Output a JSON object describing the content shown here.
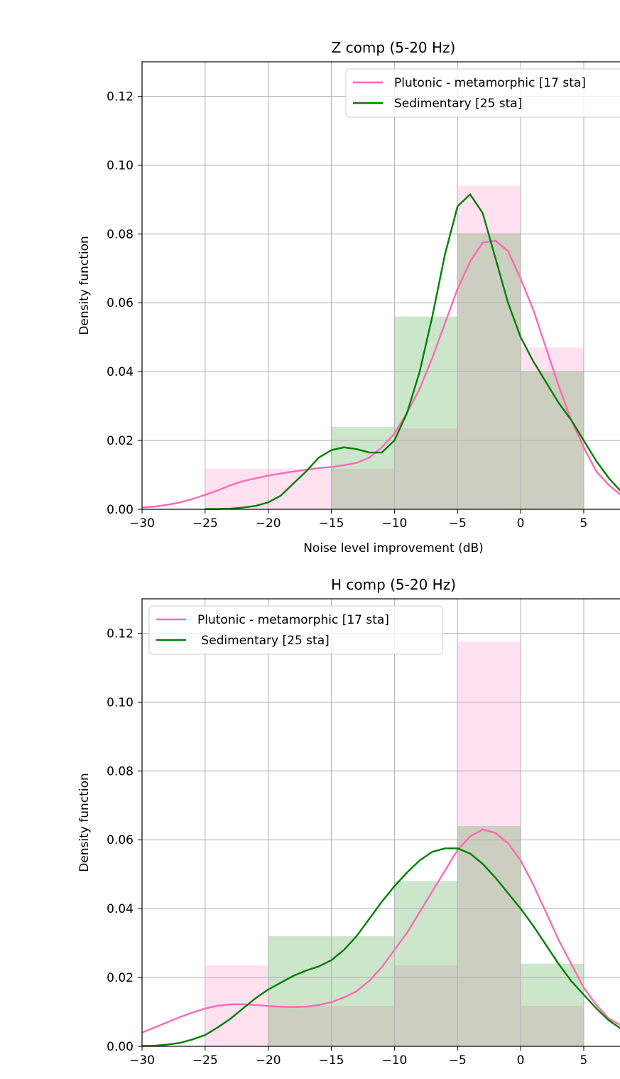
{
  "chart_data": [
    {
      "type": "histogram",
      "title": "Z comp (5-20 Hz)",
      "xlabel": "Noise level improvement (dB)",
      "ylabel": "Density function",
      "xlim": [
        -30,
        10
      ],
      "ylim": [
        0,
        0.13
      ],
      "grid": true,
      "legend": "upper right",
      "xticks": [
        {
          "value": -30,
          "label": "−30"
        },
        {
          "value": -25,
          "label": "−25"
        },
        {
          "value": -20,
          "label": "−20"
        },
        {
          "value": -15,
          "label": "−15"
        },
        {
          "value": -10,
          "label": "−10"
        },
        {
          "value": -5,
          "label": "−5"
        },
        0,
        5
      ],
      "yticks": [
        {
          "value": 0,
          "label": "0.00"
        },
        0.02,
        0.04,
        0.06,
        0.08,
        {
          "value": 0.1,
          "label": "0.10"
        },
        0.12
      ],
      "bins": [
        -25,
        -20,
        -15,
        -10,
        -5,
        0,
        5
      ],
      "histograms": [
        {
          "color": "#ff69b4",
          "values": [
            0.0118,
            0.0118,
            0.0118,
            0.0235,
            0.094,
            0.047
          ]
        },
        {
          "color": "#008000",
          "values": [
            0,
            0,
            0.024,
            0.056,
            0.08,
            0.04
          ]
        }
      ],
      "series": [
        {
          "name": "Plutonic - metamorphic [17 sta]",
          "color": "#ff69b4",
          "x": [
            -30,
            -29,
            -28,
            -27,
            -26,
            -25,
            -24,
            -23,
            -22,
            -21,
            -20,
            -19,
            -18,
            -17,
            -16,
            -15,
            -14,
            -13,
            -12,
            -11,
            -10,
            -9,
            -8,
            -7,
            -6,
            -5,
            -4,
            -3,
            -2,
            -1,
            0,
            1,
            2,
            3,
            4,
            5,
            6,
            7,
            8
          ],
          "values": [
            0.0005,
            0.0008,
            0.0013,
            0.002,
            0.003,
            0.0042,
            0.0055,
            0.007,
            0.0082,
            0.009,
            0.0098,
            0.0104,
            0.011,
            0.0115,
            0.012,
            0.0123,
            0.0128,
            0.0135,
            0.015,
            0.018,
            0.022,
            0.028,
            0.035,
            0.044,
            0.054,
            0.064,
            0.072,
            0.0775,
            0.078,
            0.075,
            0.067,
            0.058,
            0.047,
            0.036,
            0.026,
            0.018,
            0.011,
            0.007,
            0.004
          ]
        },
        {
          "name": "Sedimentary [25 sta]",
          "color": "#008000",
          "x": [
            -25,
            -24,
            -23,
            -22,
            -21,
            -20,
            -19,
            -18,
            -17,
            -16,
            -15,
            -14,
            -13,
            -12,
            -11,
            -10,
            -9,
            -8,
            -7,
            -6,
            -5,
            -4,
            -3,
            -2,
            -1,
            0,
            1,
            2,
            3,
            4,
            5,
            6,
            7,
            8
          ],
          "values": [
            0.0001,
            0.0001,
            0.0002,
            0.0005,
            0.001,
            0.002,
            0.004,
            0.0075,
            0.011,
            0.015,
            0.0172,
            0.018,
            0.0175,
            0.0165,
            0.0165,
            0.02,
            0.028,
            0.04,
            0.056,
            0.074,
            0.088,
            0.0915,
            0.086,
            0.073,
            0.06,
            0.05,
            0.043,
            0.037,
            0.031,
            0.026,
            0.02,
            0.014,
            0.009,
            0.005
          ]
        }
      ]
    },
    {
      "type": "histogram",
      "title": "H comp (5-20 Hz)",
      "xlabel": "Noise level improvement (dB)",
      "ylabel": "Density function",
      "xlim": [
        -30,
        10
      ],
      "ylim": [
        0,
        0.13
      ],
      "grid": true,
      "legend": "upper left",
      "xticks": [
        {
          "value": -30,
          "label": "−30"
        },
        {
          "value": -25,
          "label": "−25"
        },
        {
          "value": -20,
          "label": "−20"
        },
        {
          "value": -15,
          "label": "−15"
        },
        {
          "value": -10,
          "label": "−10"
        },
        {
          "value": -5,
          "label": "−5"
        },
        0,
        5
      ],
      "yticks": [
        {
          "value": 0,
          "label": "0.00"
        },
        0.02,
        0.04,
        0.06,
        0.08,
        {
          "value": 0.1,
          "label": "0.10"
        },
        0.12
      ],
      "bins": [
        -25,
        -20,
        -15,
        -10,
        -5,
        0,
        5
      ],
      "histograms": [
        {
          "color": "#ff69b4",
          "values": [
            0.0235,
            0.0118,
            0.0118,
            0.0235,
            0.1176,
            0.0118
          ]
        },
        {
          "color": "#008000",
          "values": [
            0,
            0.032,
            0.032,
            0.048,
            0.064,
            0.024
          ]
        }
      ],
      "series": [
        {
          "name": "Plutonic - metamorphic [17 sta]",
          "color": "#ff69b4",
          "x": [
            -30,
            -29,
            -28,
            -27,
            -26,
            -25,
            -24,
            -23,
            -22,
            -21,
            -20,
            -19,
            -18,
            -17,
            -16,
            -15,
            -14,
            -13,
            -12,
            -11,
            -10,
            -9,
            -8,
            -7,
            -6,
            -5,
            -4,
            -3,
            -2,
            -1,
            0,
            1,
            2,
            3,
            4,
            5,
            6,
            7,
            8
          ],
          "values": [
            0.004,
            0.0055,
            0.007,
            0.0085,
            0.0098,
            0.011,
            0.0118,
            0.0122,
            0.0122,
            0.012,
            0.0117,
            0.0115,
            0.0114,
            0.0115,
            0.012,
            0.0128,
            0.0142,
            0.016,
            0.019,
            0.023,
            0.028,
            0.033,
            0.039,
            0.045,
            0.051,
            0.057,
            0.061,
            0.063,
            0.062,
            0.059,
            0.054,
            0.047,
            0.039,
            0.031,
            0.024,
            0.017,
            0.012,
            0.008,
            0.006
          ]
        },
        {
          "name": " Sedimentary [25 sta]",
          "color": "#008000",
          "x": [
            -30,
            -29,
            -28,
            -27,
            -26,
            -25,
            -24,
            -23,
            -22,
            -21,
            -20,
            -19,
            -18,
            -17,
            -16,
            -15,
            -14,
            -13,
            -12,
            -11,
            -10,
            -9,
            -8,
            -7,
            -6,
            -5,
            -4,
            -3,
            -2,
            -1,
            0,
            1,
            2,
            3,
            4,
            5,
            6,
            7,
            8
          ],
          "values": [
            0.0001,
            0.0002,
            0.0005,
            0.001,
            0.002,
            0.0033,
            0.0055,
            0.008,
            0.011,
            0.014,
            0.0165,
            0.0185,
            0.0205,
            0.022,
            0.0232,
            0.025,
            0.028,
            0.032,
            0.037,
            0.042,
            0.0465,
            0.0505,
            0.054,
            0.0565,
            0.0575,
            0.0575,
            0.056,
            0.053,
            0.049,
            0.0445,
            0.04,
            0.035,
            0.0295,
            0.024,
            0.019,
            0.015,
            0.011,
            0.0075,
            0.005
          ]
        }
      ]
    }
  ]
}
